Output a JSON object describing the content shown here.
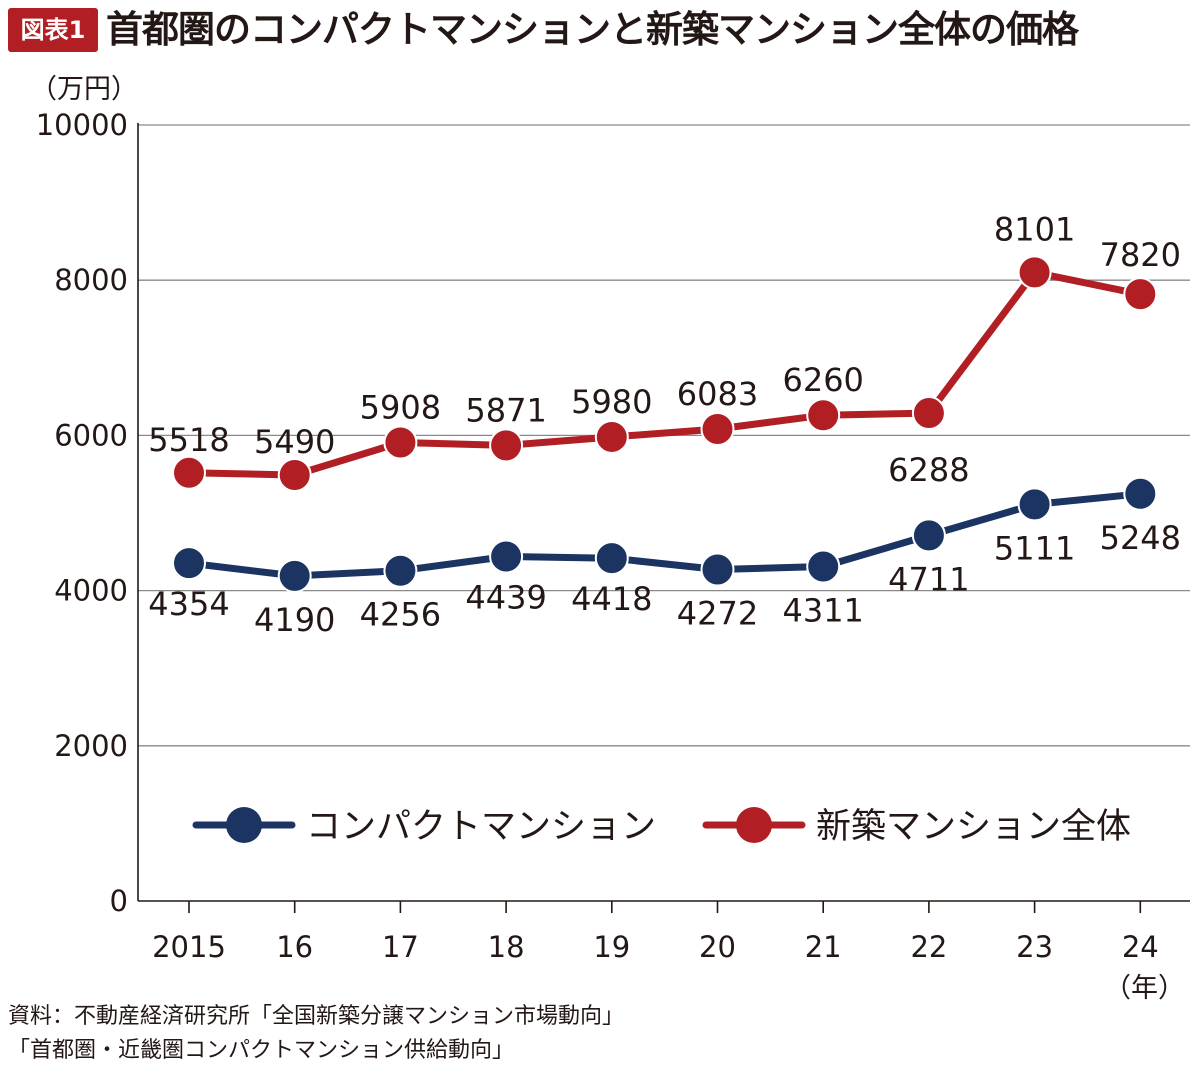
{
  "header": {
    "badge": "図表1",
    "title": "首都圏のコンパクトマンションと新築マンション全体の価格"
  },
  "chart_data": {
    "type": "line",
    "title": "首都圏のコンパクトマンションと新築マンション全体の価格",
    "ylabel": "（万円）",
    "xlabel": "（年）",
    "ylim": [
      0,
      10000
    ],
    "yticks": [
      0,
      2000,
      4000,
      6000,
      8000,
      10000
    ],
    "categories": [
      "2015",
      "16",
      "17",
      "18",
      "19",
      "20",
      "21",
      "22",
      "23",
      "24"
    ],
    "grid": true,
    "legend_position": "center",
    "series": [
      {
        "name": "コンパクトマンション",
        "color": "#1c3461",
        "values": [
          4354,
          4190,
          4256,
          4439,
          4418,
          4272,
          4311,
          4711,
          5111,
          5248
        ],
        "labels": [
          "4354",
          "4190",
          "4256",
          "4439",
          "4418",
          "4272",
          "4311",
          "4711",
          "5111",
          "5248"
        ]
      },
      {
        "name": "新築マンション全体",
        "color": "#b11f24",
        "values": [
          5518,
          5490,
          5908,
          5871,
          5980,
          6083,
          6260,
          6288,
          8101,
          7820
        ],
        "labels": [
          "5518",
          "5490",
          "5908",
          "5871",
          "5980",
          "6083",
          "6260",
          "6288",
          "8101",
          "7820"
        ]
      }
    ]
  },
  "source": {
    "line1": "資料：不動産経済研究所「全国新築分譲マンション市場動向」",
    "line2": "「首都圏・近畿圏コンパクトマンション供給動向」"
  }
}
